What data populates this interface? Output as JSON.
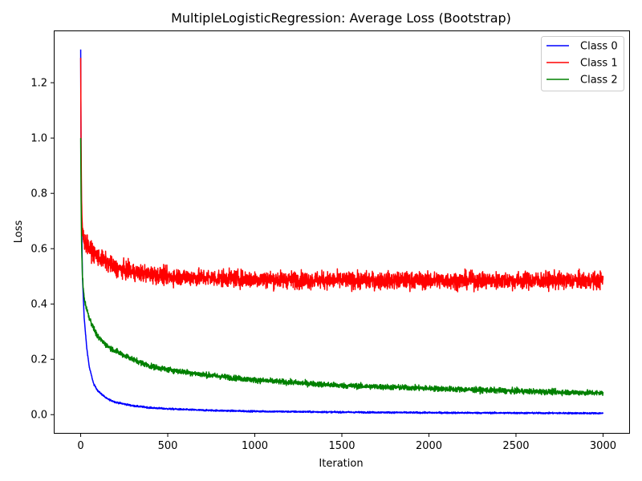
{
  "chart_data": {
    "type": "line",
    "title": "MultipleLogisticRegression: Average Loss (Bootstrap)",
    "xlabel": "Iteration",
    "ylabel": "Loss",
    "xlim": [
      -150,
      3150
    ],
    "ylim": [
      -0.066,
      1.386
    ],
    "xticks": [
      0,
      500,
      1000,
      1500,
      2000,
      2500,
      3000
    ],
    "yticks": [
      0.0,
      0.2,
      0.4,
      0.6,
      0.8,
      1.0,
      1.2
    ],
    "grid": false,
    "legend_position": "top-right",
    "series": [
      {
        "name": "Class 0",
        "color": "#0000ff",
        "noise": 0.002,
        "points": [
          [
            0,
            1.32
          ],
          [
            2,
            0.95
          ],
          [
            5,
            0.72
          ],
          [
            10,
            0.5
          ],
          [
            20,
            0.35
          ],
          [
            35,
            0.24
          ],
          [
            50,
            0.17
          ],
          [
            75,
            0.11
          ],
          [
            100,
            0.085
          ],
          [
            150,
            0.058
          ],
          [
            200,
            0.045
          ],
          [
            300,
            0.032
          ],
          [
            400,
            0.025
          ],
          [
            500,
            0.021
          ],
          [
            700,
            0.016
          ],
          [
            1000,
            0.012
          ],
          [
            1500,
            0.009
          ],
          [
            2000,
            0.007
          ],
          [
            2500,
            0.006
          ],
          [
            3000,
            0.005
          ]
        ]
      },
      {
        "name": "Class 1",
        "color": "#ff0000",
        "noise": 0.022,
        "points": [
          [
            0,
            1.29
          ],
          [
            2,
            1.0
          ],
          [
            5,
            0.78
          ],
          [
            10,
            0.66
          ],
          [
            20,
            0.63
          ],
          [
            50,
            0.6
          ],
          [
            100,
            0.57
          ],
          [
            200,
            0.53
          ],
          [
            300,
            0.515
          ],
          [
            500,
            0.5
          ],
          [
            700,
            0.495
          ],
          [
            1000,
            0.49
          ],
          [
            1500,
            0.485
          ],
          [
            2000,
            0.485
          ],
          [
            2500,
            0.485
          ],
          [
            3000,
            0.485
          ]
        ]
      },
      {
        "name": "Class 2",
        "color": "#008000",
        "noise": 0.007,
        "points": [
          [
            0,
            1.0
          ],
          [
            2,
            0.8
          ],
          [
            5,
            0.62
          ],
          [
            10,
            0.5
          ],
          [
            20,
            0.42
          ],
          [
            35,
            0.38
          ],
          [
            50,
            0.35
          ],
          [
            75,
            0.31
          ],
          [
            100,
            0.28
          ],
          [
            150,
            0.25
          ],
          [
            200,
            0.23
          ],
          [
            300,
            0.2
          ],
          [
            400,
            0.175
          ],
          [
            500,
            0.163
          ],
          [
            700,
            0.145
          ],
          [
            1000,
            0.125
          ],
          [
            1500,
            0.105
          ],
          [
            2000,
            0.095
          ],
          [
            2500,
            0.085
          ],
          [
            3000,
            0.078
          ]
        ]
      }
    ]
  }
}
